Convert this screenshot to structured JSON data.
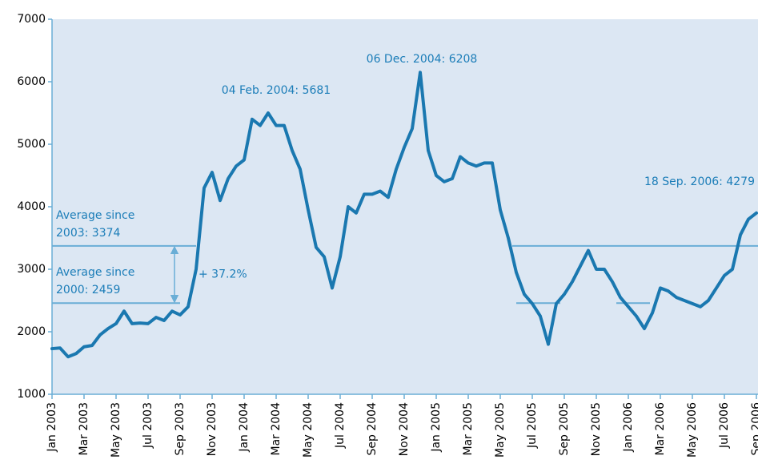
{
  "chart_data": {
    "type": "line",
    "categories": [
      "Jan 2003",
      null,
      null,
      null,
      "Mar 2003",
      null,
      null,
      null,
      "May 2003",
      null,
      null,
      null,
      "Jul 2003",
      null,
      null,
      null,
      "Sep 2003",
      null,
      null,
      null,
      "Nov 2003",
      null,
      null,
      null,
      "Jan 2004",
      null,
      null,
      null,
      "Mar 2004",
      null,
      null,
      null,
      "May 2004",
      null,
      null,
      null,
      "Jul 2004",
      null,
      null,
      null,
      "Sep 2004",
      null,
      null,
      null,
      "Nov 2004",
      null,
      null,
      null,
      "Jan 2005",
      null,
      null,
      null,
      "Mar 2005",
      null,
      null,
      null,
      "May 2005",
      null,
      null,
      null,
      "Jul 2005",
      null,
      null,
      null,
      "Sep 2005",
      null,
      null,
      null,
      "Nov 2005",
      null,
      null,
      null,
      "Jan 2006",
      null,
      null,
      null,
      "Mar 2006",
      null,
      null,
      null,
      "May 2006",
      null,
      null,
      null,
      "Jul 2006",
      null,
      null,
      null,
      "Sep 2006"
    ],
    "series": [
      {
        "color": "#1a78b0",
        "values": [
          1730,
          1740,
          1600,
          1650,
          1760,
          1780,
          1950,
          2050,
          2130,
          2330,
          2130,
          2140,
          2130,
          2230,
          2180,
          2330,
          2270,
          2400,
          3000,
          4300,
          4550,
          4100,
          4450,
          4650,
          4750,
          5400,
          5300,
          5500,
          5300,
          5300,
          4900,
          4600,
          3950,
          3350,
          3200,
          2700,
          3200,
          4000,
          3900,
          4200,
          4200,
          4250,
          4150,
          4600,
          4950,
          5250,
          6150,
          4900,
          4500,
          4400,
          4450,
          4800,
          4700,
          4650,
          4700,
          4700,
          3950,
          3500,
          2950,
          2600,
          2450,
          2250,
          1800,
          2450,
          2600,
          2800,
          3050,
          3300,
          3000,
          3000,
          2800,
          2550,
          2400,
          2250,
          2050,
          2300,
          2700,
          2650,
          2550,
          2500,
          2450,
          2400,
          2500,
          2700,
          2900,
          3000,
          3550,
          3800,
          3900
        ]
      }
    ],
    "ylim": [
      1000,
      7000
    ],
    "yticks": [
      1000,
      2000,
      3000,
      4000,
      5000,
      6000,
      7000
    ],
    "reference_lines": [
      {
        "label": [
          "Average since",
          "2003: 3374"
        ],
        "value": 3374
      },
      {
        "label": [
          "Average since",
          "2000: 2459"
        ],
        "value": 2459
      }
    ],
    "difference_label": "+ 37.2%",
    "annotations": [
      "04 Feb. 2004: 5681",
      "06 Dec. 2004: 6208",
      "18 Sep. 2006: 4279"
    ]
  }
}
